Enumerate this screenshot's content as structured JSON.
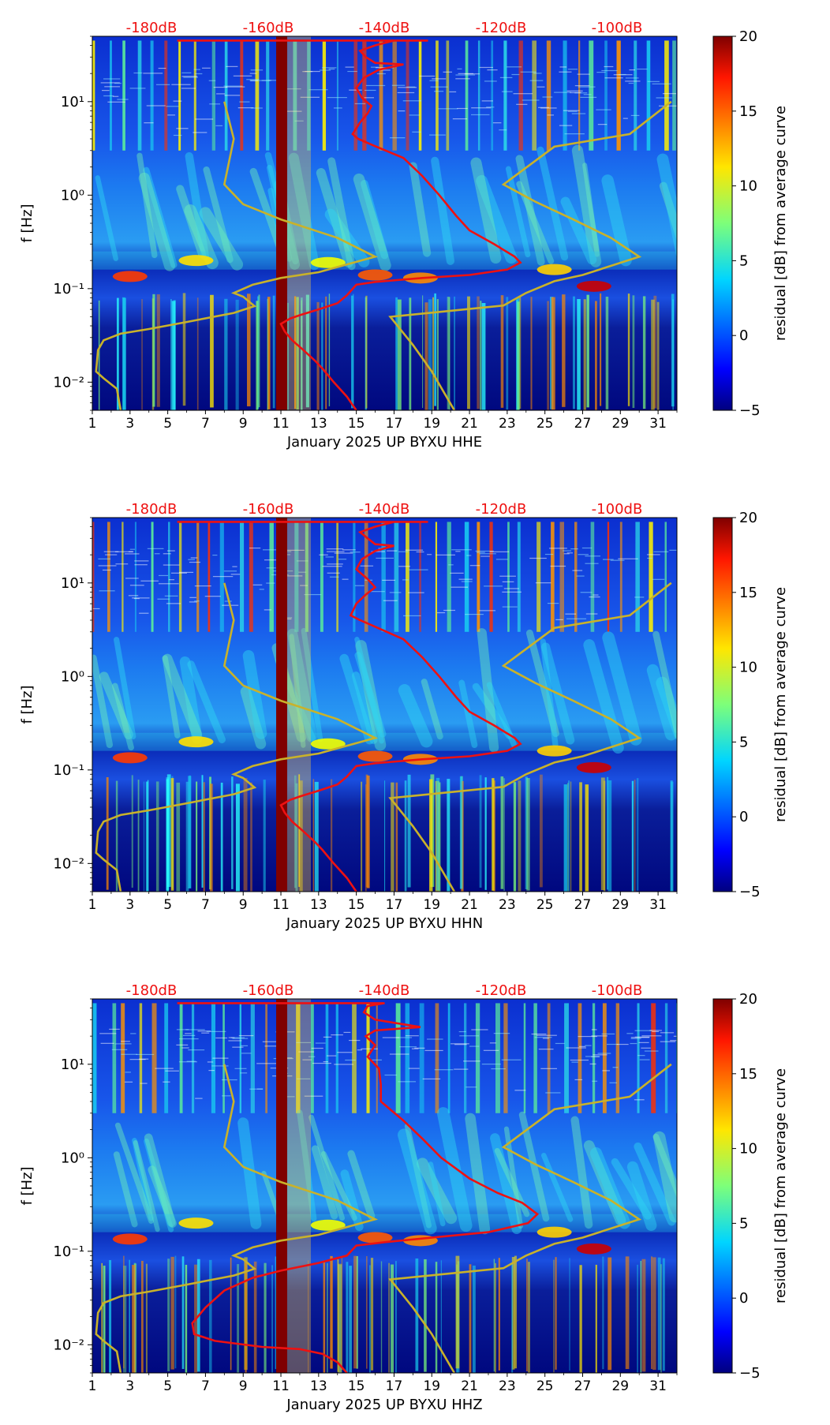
{
  "chart_data": [
    {
      "type": "heatmap",
      "xlabel": "January 2025 UP BYXU  HHE",
      "ylabel": "f [Hz]",
      "x_ticks": [
        "1",
        "3",
        "5",
        "7",
        "9",
        "11",
        "13",
        "15",
        "17",
        "19",
        "21",
        "23",
        "25",
        "27",
        "29",
        "31"
      ],
      "x_range": [
        1,
        32
      ],
      "y_scale": "log",
      "y_ticks": [
        "10⁻²",
        "10⁻¹",
        "10⁰",
        "10¹"
      ],
      "y_range": [
        0.005,
        50
      ],
      "top_axis_labels": [
        "-180dB",
        "-160dB",
        "-140dB",
        "-120dB",
        "-100dB"
      ],
      "colorbar": {
        "label": "residual [dB] from average curve",
        "ticks": [
          "−5",
          "0",
          "5",
          "10",
          "15",
          "20"
        ],
        "range": [
          -5,
          20
        ]
      },
      "gap_day": 11,
      "red_curve": [
        [
          5.5,
          45
        ],
        [
          7,
          45
        ],
        [
          9,
          45
        ],
        [
          11,
          45
        ],
        [
          13,
          45
        ],
        [
          15,
          45
        ],
        [
          17,
          45
        ],
        [
          18.8,
          45
        ],
        [
          17,
          45
        ],
        [
          16,
          40
        ],
        [
          15.2,
          35
        ],
        [
          15.5,
          30
        ],
        [
          16,
          26
        ],
        [
          17.5,
          25
        ],
        [
          16.2,
          22
        ],
        [
          15.4,
          18
        ],
        [
          15,
          14
        ],
        [
          15.3,
          11
        ],
        [
          15.8,
          9
        ],
        [
          15.6,
          7.5
        ],
        [
          15.2,
          6
        ],
        [
          14.8,
          4.5
        ],
        [
          15.1,
          4
        ],
        [
          15.9,
          3.4
        ],
        [
          17.5,
          2.5
        ],
        [
          18.5,
          1.6
        ],
        [
          19.4,
          1
        ],
        [
          20.3,
          0.6
        ],
        [
          21,
          0.42
        ],
        [
          22.3,
          0.3
        ],
        [
          23.4,
          0.22
        ],
        [
          23.7,
          0.19
        ],
        [
          23,
          0.16
        ],
        [
          21,
          0.14
        ],
        [
          18.5,
          0.13
        ],
        [
          16,
          0.118
        ],
        [
          15,
          0.11
        ],
        [
          14.5,
          0.085
        ],
        [
          14,
          0.07
        ],
        [
          13,
          0.06
        ],
        [
          12,
          0.052
        ],
        [
          11.5,
          0.048
        ],
        [
          11,
          0.042
        ],
        [
          11.2,
          0.035
        ],
        [
          11.6,
          0.028
        ],
        [
          12.2,
          0.022
        ],
        [
          12.8,
          0.017
        ],
        [
          13.2,
          0.014
        ],
        [
          13.8,
          0.01
        ],
        [
          14.5,
          0.007
        ],
        [
          15,
          0.005
        ]
      ],
      "yellow_low_curve": [
        [
          2.5,
          0.005
        ],
        [
          2.3,
          0.0085
        ],
        [
          1.6,
          0.011
        ],
        [
          1.2,
          0.013
        ],
        [
          1.3,
          0.022
        ],
        [
          1.6,
          0.028
        ],
        [
          2.5,
          0.033
        ],
        [
          4,
          0.037
        ],
        [
          6,
          0.044
        ],
        [
          8.5,
          0.055
        ],
        [
          9.6,
          0.065
        ],
        [
          9,
          0.082
        ],
        [
          8.5,
          0.09
        ],
        [
          9.5,
          0.11
        ],
        [
          11,
          0.13
        ],
        [
          13,
          0.15
        ],
        [
          16,
          0.22
        ],
        [
          14,
          0.35
        ],
        [
          11,
          0.55
        ],
        [
          9,
          0.8
        ],
        [
          8,
          1.3
        ],
        [
          8.5,
          4
        ],
        [
          8,
          10
        ]
      ],
      "yellow_high_curve": [
        [
          20.2,
          0.005
        ],
        [
          19,
          0.013
        ],
        [
          18,
          0.025
        ],
        [
          16.8,
          0.05
        ],
        [
          22.8,
          0.066
        ],
        [
          24,
          0.09
        ],
        [
          25.5,
          0.12
        ],
        [
          27,
          0.14
        ],
        [
          30,
          0.22
        ],
        [
          28.5,
          0.35
        ],
        [
          26.5,
          0.55
        ],
        [
          24.5,
          0.85
        ],
        [
          22.8,
          1.3
        ],
        [
          25.5,
          3.3
        ],
        [
          29.5,
          4.5
        ],
        [
          31.7,
          10
        ]
      ]
    },
    {
      "type": "heatmap",
      "xlabel": "January 2025 UP BYXU  HHN",
      "ylabel": "f [Hz]",
      "x_ticks": [
        "1",
        "3",
        "5",
        "7",
        "9",
        "11",
        "13",
        "15",
        "17",
        "19",
        "21",
        "23",
        "25",
        "27",
        "29",
        "31"
      ],
      "x_range": [
        1,
        32
      ],
      "y_scale": "log",
      "y_ticks": [
        "10⁻²",
        "10⁻¹",
        "10⁰",
        "10¹"
      ],
      "y_range": [
        0.005,
        50
      ],
      "top_axis_labels": [
        "-180dB",
        "-160dB",
        "-140dB",
        "-120dB",
        "-100dB"
      ],
      "colorbar": {
        "label": "residual [dB] from average curve",
        "ticks": [
          "−5",
          "0",
          "5",
          "10",
          "15",
          "20"
        ],
        "range": [
          -5,
          20
        ]
      },
      "gap_day": 11,
      "red_curve": [
        [
          5.5,
          45
        ],
        [
          7,
          45
        ],
        [
          9,
          45
        ],
        [
          11,
          45
        ],
        [
          13,
          45
        ],
        [
          15,
          45
        ],
        [
          17,
          45
        ],
        [
          18.8,
          45
        ],
        [
          17,
          45
        ],
        [
          16,
          40
        ],
        [
          15.2,
          35
        ],
        [
          15.6,
          30
        ],
        [
          16,
          26
        ],
        [
          17,
          25
        ],
        [
          16,
          22
        ],
        [
          15.3,
          18
        ],
        [
          15,
          14
        ],
        [
          15.6,
          11
        ],
        [
          16,
          9
        ],
        [
          15.5,
          7.5
        ],
        [
          15,
          6
        ],
        [
          14.7,
          4.5
        ],
        [
          15.2,
          4
        ],
        [
          16,
          3.4
        ],
        [
          17.5,
          2.5
        ],
        [
          18.5,
          1.6
        ],
        [
          19.4,
          1
        ],
        [
          20.3,
          0.6
        ],
        [
          21,
          0.42
        ],
        [
          22.3,
          0.3
        ],
        [
          23.4,
          0.22
        ],
        [
          23.7,
          0.19
        ],
        [
          23,
          0.16
        ],
        [
          21,
          0.14
        ],
        [
          18.5,
          0.13
        ],
        [
          16,
          0.118
        ],
        [
          15,
          0.11
        ],
        [
          14.5,
          0.085
        ],
        [
          14,
          0.07
        ],
        [
          13,
          0.06
        ],
        [
          12,
          0.052
        ],
        [
          11.5,
          0.048
        ],
        [
          11,
          0.042
        ],
        [
          11.2,
          0.035
        ],
        [
          11.6,
          0.028
        ],
        [
          12.2,
          0.022
        ],
        [
          12.8,
          0.017
        ],
        [
          13.2,
          0.014
        ],
        [
          13.8,
          0.01
        ],
        [
          14.5,
          0.007
        ],
        [
          15,
          0.005
        ]
      ],
      "yellow_low_curve": [
        [
          2.5,
          0.005
        ],
        [
          2.3,
          0.0085
        ],
        [
          1.6,
          0.011
        ],
        [
          1.2,
          0.013
        ],
        [
          1.3,
          0.022
        ],
        [
          1.6,
          0.028
        ],
        [
          2.5,
          0.033
        ],
        [
          4,
          0.037
        ],
        [
          6,
          0.044
        ],
        [
          8.5,
          0.055
        ],
        [
          9.6,
          0.065
        ],
        [
          9,
          0.082
        ],
        [
          8.5,
          0.09
        ],
        [
          9.5,
          0.11
        ],
        [
          11,
          0.13
        ],
        [
          13,
          0.15
        ],
        [
          16,
          0.22
        ],
        [
          14,
          0.35
        ],
        [
          11,
          0.55
        ],
        [
          9,
          0.8
        ],
        [
          8,
          1.3
        ],
        [
          8.5,
          4
        ],
        [
          8,
          10
        ]
      ],
      "yellow_high_curve": [
        [
          20.2,
          0.005
        ],
        [
          19,
          0.013
        ],
        [
          18,
          0.025
        ],
        [
          16.8,
          0.05
        ],
        [
          22.8,
          0.066
        ],
        [
          24,
          0.09
        ],
        [
          25.5,
          0.12
        ],
        [
          27,
          0.14
        ],
        [
          30,
          0.22
        ],
        [
          28.5,
          0.35
        ],
        [
          26.5,
          0.55
        ],
        [
          24.5,
          0.85
        ],
        [
          22.8,
          1.3
        ],
        [
          25.5,
          3.3
        ],
        [
          29.5,
          4.5
        ],
        [
          31.7,
          10
        ]
      ]
    },
    {
      "type": "heatmap",
      "xlabel": "January 2025 UP BYXU  HHZ",
      "ylabel": "f [Hz]",
      "x_ticks": [
        "1",
        "3",
        "5",
        "7",
        "9",
        "11",
        "13",
        "15",
        "17",
        "19",
        "21",
        "23",
        "25",
        "27",
        "29",
        "31"
      ],
      "x_range": [
        1,
        32
      ],
      "y_scale": "log",
      "y_ticks": [
        "10⁻²",
        "10⁻¹",
        "10⁰",
        "10¹"
      ],
      "y_range": [
        0.005,
        50
      ],
      "top_axis_labels": [
        "-180dB",
        "-160dB",
        "-140dB",
        "-120dB",
        "-100dB"
      ],
      "colorbar": {
        "label": "residual [dB] from average curve",
        "ticks": [
          "−5",
          "0",
          "5",
          "10",
          "15",
          "20"
        ],
        "range": [
          -5,
          20
        ]
      },
      "gap_day": 11,
      "red_curve": [
        [
          5.5,
          45
        ],
        [
          7,
          45
        ],
        [
          9,
          45
        ],
        [
          11,
          45
        ],
        [
          13,
          45
        ],
        [
          15,
          45
        ],
        [
          16.5,
          45
        ],
        [
          15.6,
          42
        ],
        [
          15.4,
          36
        ],
        [
          16,
          30
        ],
        [
          18.4,
          25
        ],
        [
          16,
          23
        ],
        [
          15.5,
          20
        ],
        [
          16,
          16
        ],
        [
          15.6,
          12
        ],
        [
          16.2,
          9
        ],
        [
          16.3,
          6
        ],
        [
          16.3,
          4
        ],
        [
          17.5,
          2.5
        ],
        [
          18.5,
          1.6
        ],
        [
          19.5,
          1
        ],
        [
          21,
          0.6
        ],
        [
          22.5,
          0.42
        ],
        [
          23.8,
          0.33
        ],
        [
          24.6,
          0.25
        ],
        [
          24.1,
          0.2
        ],
        [
          22,
          0.16
        ],
        [
          19,
          0.14
        ],
        [
          16.5,
          0.125
        ],
        [
          15,
          0.115
        ],
        [
          14.5,
          0.09
        ],
        [
          13,
          0.075
        ],
        [
          11,
          0.062
        ],
        [
          9.5,
          0.052
        ],
        [
          8,
          0.038
        ],
        [
          7,
          0.025
        ],
        [
          6.3,
          0.017
        ],
        [
          6.4,
          0.013
        ],
        [
          7.5,
          0.011
        ],
        [
          10,
          0.0095
        ],
        [
          12,
          0.009
        ],
        [
          13.2,
          0.008
        ],
        [
          14,
          0.0065
        ],
        [
          14.5,
          0.005
        ]
      ],
      "yellow_low_curve": [
        [
          2.5,
          0.005
        ],
        [
          2.3,
          0.0085
        ],
        [
          1.6,
          0.011
        ],
        [
          1.2,
          0.013
        ],
        [
          1.3,
          0.022
        ],
        [
          1.6,
          0.028
        ],
        [
          2.5,
          0.033
        ],
        [
          4,
          0.037
        ],
        [
          6,
          0.044
        ],
        [
          8.5,
          0.055
        ],
        [
          9.6,
          0.065
        ],
        [
          9,
          0.082
        ],
        [
          8.5,
          0.09
        ],
        [
          9.5,
          0.11
        ],
        [
          11,
          0.13
        ],
        [
          13,
          0.15
        ],
        [
          16,
          0.22
        ],
        [
          14,
          0.35
        ],
        [
          11,
          0.55
        ],
        [
          9,
          0.8
        ],
        [
          8,
          1.3
        ],
        [
          8.5,
          4
        ],
        [
          8,
          10
        ]
      ],
      "yellow_high_curve": [
        [
          20.2,
          0.005
        ],
        [
          19,
          0.013
        ],
        [
          18,
          0.025
        ],
        [
          16.8,
          0.05
        ],
        [
          22.8,
          0.066
        ],
        [
          24,
          0.09
        ],
        [
          25.5,
          0.12
        ],
        [
          27,
          0.14
        ],
        [
          30,
          0.22
        ],
        [
          28.5,
          0.35
        ],
        [
          26.5,
          0.55
        ],
        [
          24.5,
          0.85
        ],
        [
          22.8,
          1.3
        ],
        [
          25.5,
          3.3
        ],
        [
          29.5,
          4.5
        ],
        [
          31.7,
          10
        ]
      ]
    }
  ],
  "colors": {
    "red_curve": "#ee1111",
    "yellow_curve": "#c9b22a",
    "top_label": "#ee1111",
    "gap_band": "#7f0000",
    "background_low": "#00007f",
    "background_mid": "#1e4fe6"
  }
}
